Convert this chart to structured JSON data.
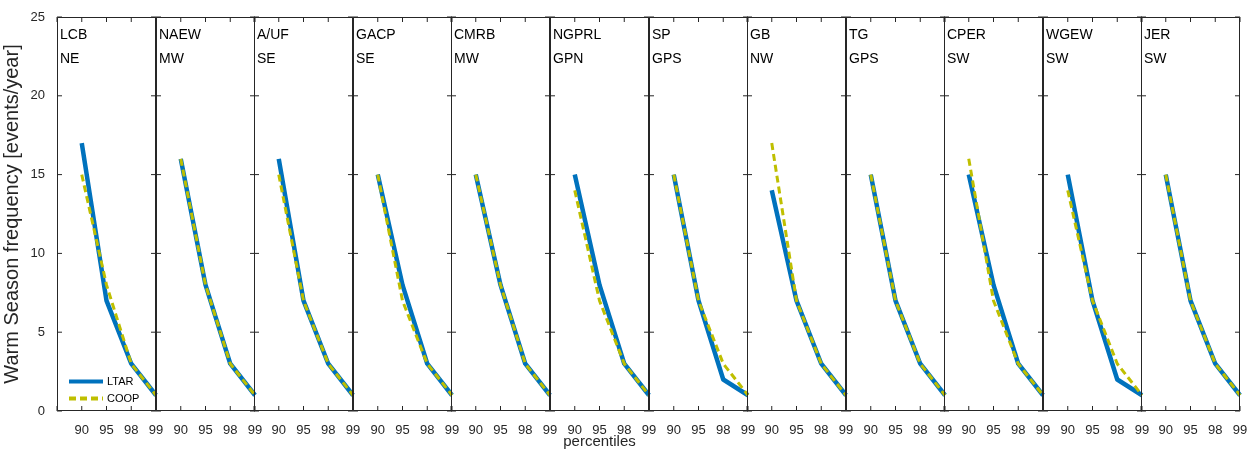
{
  "chart_data": [
    {
      "type": "line",
      "annotations": [
        "LCB",
        "NE"
      ],
      "ylabel": "Warm Season frequency [events/year]",
      "legend": "bottom left",
      "categories": [
        null,
        "90",
        "95",
        "98",
        "99"
      ],
      "ylim": [
        0,
        25
      ],
      "yticks": [
        0,
        5,
        10,
        15,
        20,
        25
      ],
      "series": [
        {
          "name": "LTAR",
          "color": "#0072bd",
          "line_style": "solid",
          "values": [
            null,
            17,
            7,
            3,
            1
          ]
        },
        {
          "name": "COOP",
          "color": "#bfbf00",
          "line_style": "dashed",
          "values": [
            null,
            15,
            8,
            3,
            1
          ]
        }
      ]
    },
    {
      "type": "line",
      "annotations": [
        "NAEW",
        "MW"
      ],
      "tick_labels": "x",
      "categories": [
        null,
        "90",
        "95",
        "98",
        "99"
      ],
      "ylim": [
        0,
        25
      ],
      "yticks": [
        0,
        5,
        10,
        15,
        20,
        25
      ],
      "series": [
        {
          "color": "#0072bd",
          "line_style": "solid",
          "values": [
            null,
            16,
            8,
            3,
            1
          ]
        },
        {
          "color": "#bfbf00",
          "line_style": "dashed",
          "values": [
            null,
            16,
            8,
            3,
            1
          ]
        }
      ]
    },
    {
      "type": "line",
      "annotations": [
        "A/UF",
        "SE"
      ],
      "tick_labels": "x",
      "categories": [
        null,
        "90",
        "95",
        "98",
        "99"
      ],
      "ylim": [
        0,
        25
      ],
      "yticks": [
        0,
        5,
        10,
        15,
        20,
        25
      ],
      "series": [
        {
          "color": "#0072bd",
          "line_style": "solid",
          "values": [
            null,
            16,
            7,
            3,
            1
          ]
        },
        {
          "color": "#bfbf00",
          "line_style": "dashed",
          "values": [
            null,
            15,
            7,
            3,
            1
          ]
        }
      ]
    },
    {
      "type": "line",
      "annotations": [
        "GACP",
        "SE"
      ],
      "tick_labels": "x",
      "categories": [
        null,
        "90",
        "95",
        "98",
        "99"
      ],
      "ylim": [
        0,
        25
      ],
      "yticks": [
        0,
        5,
        10,
        15,
        20,
        25
      ],
      "series": [
        {
          "color": "#0072bd",
          "line_style": "solid",
          "values": [
            null,
            15,
            8,
            3,
            1
          ]
        },
        {
          "color": "#bfbf00",
          "line_style": "dashed",
          "values": [
            null,
            15,
            7,
            3,
            1
          ]
        }
      ]
    },
    {
      "type": "line",
      "annotations": [
        "CMRB",
        "MW"
      ],
      "tick_labels": "x",
      "categories": [
        null,
        "90",
        "95",
        "98",
        "99"
      ],
      "ylim": [
        0,
        25
      ],
      "yticks": [
        0,
        5,
        10,
        15,
        20,
        25
      ],
      "series": [
        {
          "color": "#0072bd",
          "line_style": "solid",
          "values": [
            null,
            15,
            8,
            3,
            1
          ]
        },
        {
          "color": "#bfbf00",
          "line_style": "dashed",
          "values": [
            null,
            15,
            8,
            3,
            1
          ]
        }
      ]
    },
    {
      "type": "line",
      "annotations": [
        "NGPRL",
        "GPN"
      ],
      "xlabel": "percentiles",
      "tick_labels": "x",
      "categories": [
        null,
        "90",
        "95",
        "98",
        "99"
      ],
      "ylim": [
        0,
        25
      ],
      "yticks": [
        0,
        5,
        10,
        15,
        20,
        25
      ],
      "series": [
        {
          "color": "#0072bd",
          "line_style": "solid",
          "values": [
            null,
            15,
            8,
            3,
            1
          ]
        },
        {
          "color": "#bfbf00",
          "line_style": "dashed",
          "values": [
            null,
            14,
            7,
            3,
            1
          ]
        }
      ]
    },
    {
      "type": "line",
      "annotations": [
        "SP",
        "GPS"
      ],
      "tick_labels": "x",
      "categories": [
        null,
        "90",
        "95",
        "98",
        "99"
      ],
      "ylim": [
        0,
        25
      ],
      "yticks": [
        0,
        5,
        10,
        15,
        20,
        25
      ],
      "series": [
        {
          "color": "#0072bd",
          "line_style": "solid",
          "values": [
            null,
            15,
            7,
            2,
            1
          ]
        },
        {
          "color": "#bfbf00",
          "line_style": "dashed",
          "values": [
            null,
            15,
            7,
            3,
            1
          ]
        }
      ]
    },
    {
      "type": "line",
      "annotations": [
        "GB",
        "NW"
      ],
      "tick_labels": "x",
      "categories": [
        null,
        "90",
        "95",
        "98",
        "99"
      ],
      "ylim": [
        0,
        25
      ],
      "yticks": [
        0,
        5,
        10,
        15,
        20,
        25
      ],
      "series": [
        {
          "color": "#0072bd",
          "line_style": "solid",
          "values": [
            null,
            14,
            7,
            3,
            1
          ]
        },
        {
          "color": "#bfbf00",
          "line_style": "dashed",
          "values": [
            null,
            17,
            7,
            3,
            1
          ]
        }
      ]
    },
    {
      "type": "line",
      "annotations": [
        "TG",
        "GPS"
      ],
      "tick_labels": "x",
      "categories": [
        null,
        "90",
        "95",
        "98",
        "99"
      ],
      "ylim": [
        0,
        25
      ],
      "yticks": [
        0,
        5,
        10,
        15,
        20,
        25
      ],
      "series": [
        {
          "color": "#0072bd",
          "line_style": "solid",
          "values": [
            null,
            15,
            7,
            3,
            1
          ]
        },
        {
          "color": "#bfbf00",
          "line_style": "dashed",
          "values": [
            null,
            15,
            7,
            3,
            1
          ]
        }
      ]
    },
    {
      "type": "line",
      "annotations": [
        "CPER",
        "SW"
      ],
      "tick_labels": "x",
      "categories": [
        null,
        "90",
        "95",
        "98",
        "99"
      ],
      "ylim": [
        0,
        25
      ],
      "yticks": [
        0,
        5,
        10,
        15,
        20,
        25
      ],
      "series": [
        {
          "color": "#0072bd",
          "line_style": "solid",
          "values": [
            null,
            15,
            8,
            3,
            1
          ]
        },
        {
          "color": "#bfbf00",
          "line_style": "dashed",
          "values": [
            null,
            16,
            7,
            3,
            1
          ]
        }
      ]
    },
    {
      "type": "line",
      "annotations": [
        "WGEW",
        "SW"
      ],
      "tick_labels": "x",
      "categories": [
        null,
        "90",
        "95",
        "98",
        "99"
      ],
      "ylim": [
        0,
        25
      ],
      "yticks": [
        0,
        5,
        10,
        15,
        20,
        25
      ],
      "series": [
        {
          "color": "#0072bd",
          "line_style": "solid",
          "values": [
            null,
            15,
            7,
            2,
            1
          ]
        },
        {
          "color": "#bfbf00",
          "line_style": "dashed",
          "values": [
            null,
            14,
            7,
            3,
            1
          ]
        }
      ]
    },
    {
      "type": "line",
      "annotations": [
        "JER",
        "SW"
      ],
      "tick_labels": "x",
      "categories": [
        null,
        "90",
        "95",
        "98",
        "99"
      ],
      "ylim": [
        0,
        25
      ],
      "yticks": [
        0,
        5,
        10,
        15,
        20,
        25
      ],
      "series": [
        {
          "color": "#0072bd",
          "line_style": "solid",
          "values": [
            null,
            15,
            7,
            3,
            1
          ]
        },
        {
          "color": "#bfbf00",
          "line_style": "dashed",
          "values": [
            null,
            15,
            7,
            3,
            1
          ]
        }
      ]
    }
  ]
}
